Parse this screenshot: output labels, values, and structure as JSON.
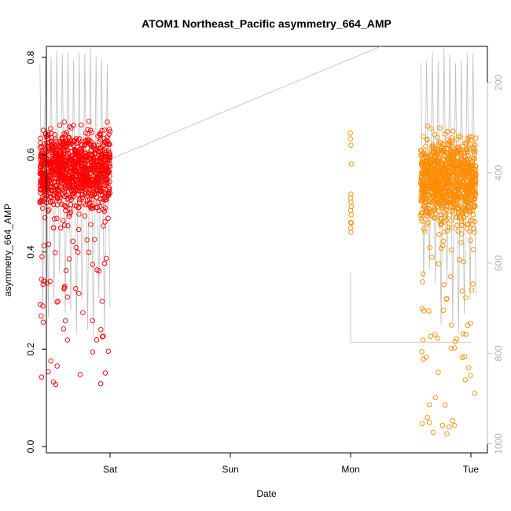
{
  "chart_data": {
    "type": "scatter",
    "title": "ATOM1 Northeast_Pacific asymmetry_664_AMP",
    "xlabel": "Date",
    "ylabel": "asymmetry_664_AMP",
    "x_ticks": [
      "Sat",
      "Sun",
      "Mon",
      "Tue"
    ],
    "y_ticks": [
      "0.0",
      "0.2",
      "0.4",
      "0.6",
      "0.8"
    ],
    "ylim": [
      0.0,
      0.8
    ],
    "secondary_axis": {
      "side": "right",
      "ticks": [
        "200",
        "400",
        "600",
        "800",
        "1000"
      ],
      "range": [
        120,
        1020
      ],
      "color": "#bebebe"
    },
    "series": [
      {
        "color": "#ff0000",
        "marker": "open-circle",
        "x_range": [
          "Fri 10:00",
          "Fri 24:00"
        ],
        "y_center": 0.57,
        "y_spread": [
          0.12,
          0.79
        ]
      },
      {
        "color": "#ff8c00",
        "marker": "open-circle",
        "x_range": [
          "Mon 14:00",
          "Tue 01:00"
        ],
        "y_center": 0.55,
        "y_spread": [
          0.02,
          0.7
        ]
      },
      {
        "color": "#ff8c00",
        "marker": "open-circle",
        "x_range": [
          "Mon 00:00",
          "Mon 00:00"
        ],
        "y_center": 0.56,
        "y_spread": [
          0.44,
          0.68
        ]
      }
    ],
    "depth_trace": {
      "color": "#bebebe",
      "line": "thin"
    },
    "grid": false,
    "legend": "none"
  }
}
